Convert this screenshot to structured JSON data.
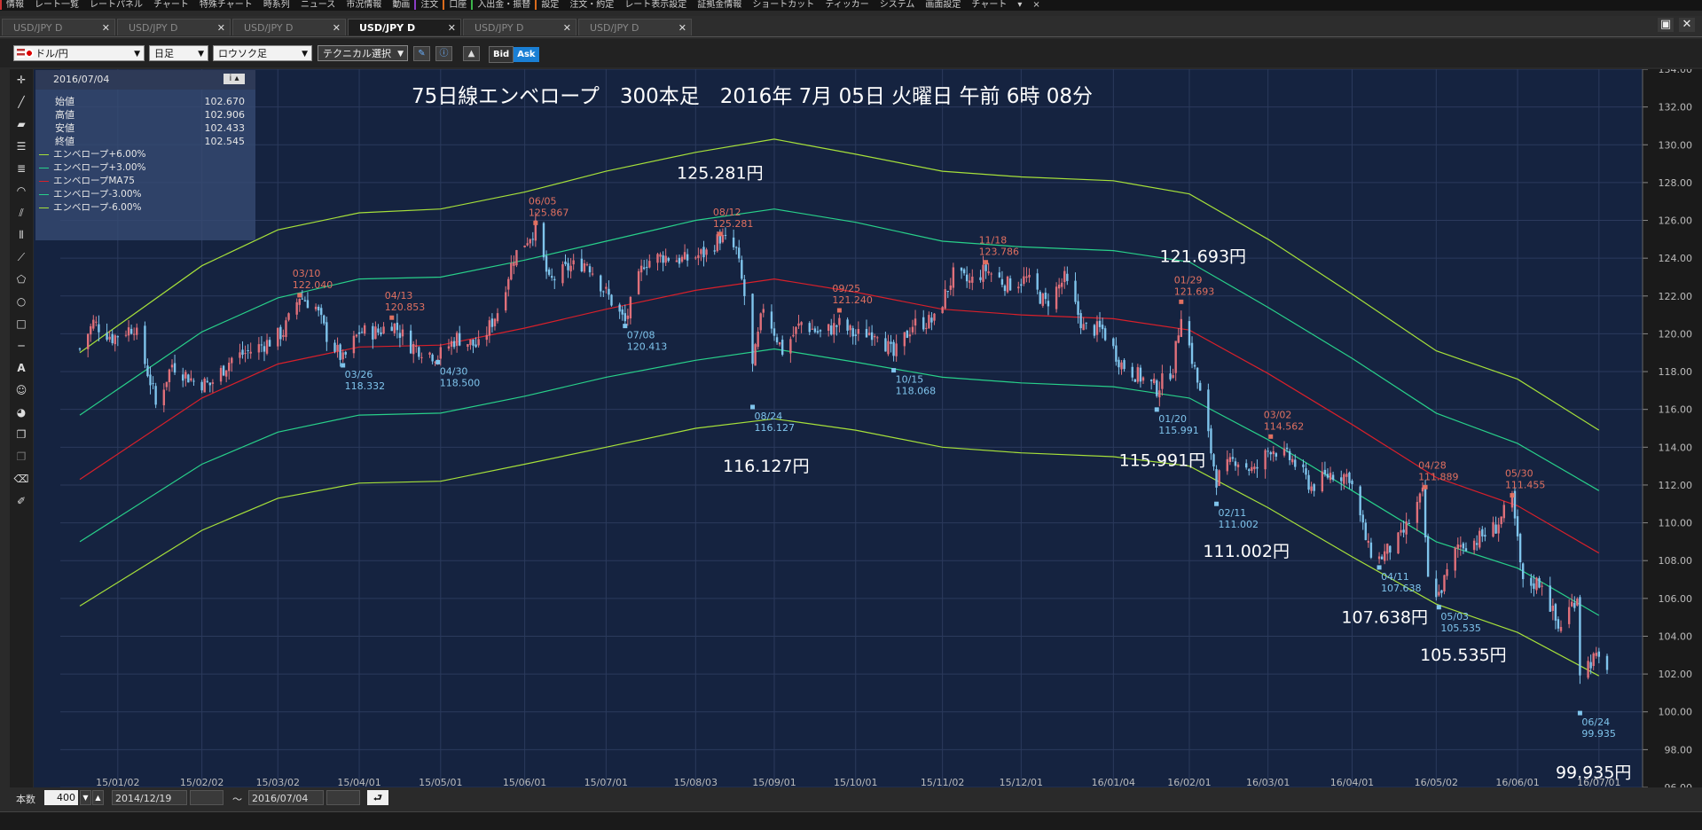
{
  "menu": [
    "情報",
    "レート一覧",
    "レートパネル",
    "チャート",
    "特殊チャート",
    "時系列",
    "ニュース",
    "市況情報",
    "動画",
    "注文",
    "口座",
    "入出金・振替",
    "設定",
    "注文・約定",
    "レート表示設定",
    "証拠金情報",
    "ショートカット",
    "ティッカー",
    "システム",
    "画面設定",
    "チャート",
    "▾",
    "×"
  ],
  "tabs": [
    "USD/JPY D",
    "USD/JPY D",
    "USD/JPY D",
    "USD/JPY D",
    "USD/JPY D",
    "USD/JPY D"
  ],
  "active_tab": 3,
  "window_buttons": [
    "▣",
    "✕"
  ],
  "toolbar": {
    "currency": "ドル/円",
    "period": "日足",
    "chart_style": "ロウソク足",
    "technical": "テクニカル選択",
    "bid": "Bid",
    "ask": "Ask"
  },
  "info": {
    "date": "2016/07/04",
    "rows": [
      {
        "label": "始値",
        "value": "102.670"
      },
      {
        "label": "高値",
        "value": "102.906"
      },
      {
        "label": "安値",
        "value": "102.433"
      },
      {
        "label": "終値",
        "value": "102.545"
      }
    ],
    "legend": [
      {
        "label": "エンベロープ+6.00%",
        "color": "#a6e03a"
      },
      {
        "label": "エンベロープ+3.00%",
        "color": "#28d08a"
      },
      {
        "label": "エンベロープMA75",
        "color": "#d8202a"
      },
      {
        "label": "エンベロープ-3.00%",
        "color": "#28d08a"
      },
      {
        "label": "エンベロープ-6.00%",
        "color": "#a6e03a"
      }
    ]
  },
  "bottom": {
    "count_label": "本数",
    "count": "400",
    "from": "2014/12/19",
    "tilde": "～",
    "to": "2016/07/04"
  },
  "chart_data": {
    "type": "candlestick",
    "title": "75日線エンベロープ　300本足　2016年 7月 05日 火曜日 午前 6時 08分",
    "ylim": [
      96,
      134
    ],
    "yticks": [
      "96.00",
      "98.00",
      "100.00",
      "102.00",
      "104.00",
      "106.00",
      "108.00",
      "110.00",
      "112.00",
      "114.00",
      "116.00",
      "118.00",
      "120.00",
      "122.00",
      "124.00",
      "126.00",
      "128.00",
      "130.00",
      "132.00",
      "134.00"
    ],
    "xticks": [
      "15/01/02",
      "15/02/02",
      "15/03/02",
      "15/04/01",
      "15/05/01",
      "15/06/01",
      "15/07/01",
      "15/08/03",
      "15/09/01",
      "15/10/01",
      "15/11/02",
      "15/12/01",
      "16/01/04",
      "16/02/01",
      "16/03/01",
      "16/04/01",
      "16/05/02",
      "16/06/01",
      "16/07/01"
    ],
    "close_path": [
      [
        "2014-12-19",
        119.2
      ],
      [
        "2014-12-24",
        120.6
      ],
      [
        "2014-12-31",
        119.8
      ],
      [
        "2015-01-08",
        120.4
      ],
      [
        "2015-01-15",
        117.0
      ],
      [
        "2015-01-16",
        116.2
      ],
      [
        "2015-01-22",
        118.4
      ],
      [
        "2015-01-30",
        117.5
      ],
      [
        "2015-02-05",
        117.3
      ],
      [
        "2015-02-13",
        118.7
      ],
      [
        "2015-02-20",
        119.1
      ],
      [
        "2015-02-27",
        119.6
      ],
      [
        "2015-03-04",
        120.1
      ],
      [
        "2015-03-10",
        122.0
      ],
      [
        "2015-03-16",
        121.4
      ],
      [
        "2015-03-20",
        119.9
      ],
      [
        "2015-03-26",
        118.6
      ],
      [
        "2015-04-01",
        120.1
      ],
      [
        "2015-04-08",
        120.1
      ],
      [
        "2015-04-13",
        120.6
      ],
      [
        "2015-04-20",
        119.4
      ],
      [
        "2015-04-30",
        118.8
      ],
      [
        "2015-05-07",
        119.8
      ],
      [
        "2015-05-15",
        119.3
      ],
      [
        "2015-05-22",
        121.2
      ],
      [
        "2015-05-28",
        124.1
      ],
      [
        "2015-06-05",
        125.6
      ],
      [
        "2015-06-10",
        122.7
      ],
      [
        "2015-06-17",
        123.5
      ],
      [
        "2015-06-24",
        123.8
      ],
      [
        "2015-06-30",
        122.4
      ],
      [
        "2015-07-08",
        120.6
      ],
      [
        "2015-07-15",
        123.8
      ],
      [
        "2015-07-22",
        124.1
      ],
      [
        "2015-07-30",
        123.9
      ],
      [
        "2015-08-07",
        124.3
      ],
      [
        "2015-08-12",
        125.1
      ],
      [
        "2015-08-18",
        124.4
      ],
      [
        "2015-08-21",
        122.0
      ],
      [
        "2015-08-24",
        118.2
      ],
      [
        "2015-08-28",
        121.5
      ],
      [
        "2015-09-04",
        119.1
      ],
      [
        "2015-09-11",
        120.6
      ],
      [
        "2015-09-18",
        120.0
      ],
      [
        "2015-09-25",
        120.5
      ],
      [
        "2015-10-01",
        119.9
      ],
      [
        "2015-10-09",
        120.2
      ],
      [
        "2015-10-15",
        118.8
      ],
      [
        "2015-10-22",
        120.5
      ],
      [
        "2015-10-30",
        120.7
      ],
      [
        "2015-11-06",
        123.1
      ],
      [
        "2015-11-12",
        122.7
      ],
      [
        "2015-11-18",
        123.4
      ],
      [
        "2015-11-26",
        122.6
      ],
      [
        "2015-12-03",
        122.9
      ],
      [
        "2015-12-10",
        121.6
      ],
      [
        "2015-12-17",
        122.9
      ],
      [
        "2015-12-24",
        120.3
      ],
      [
        "2015-12-31",
        120.2
      ],
      [
        "2016-01-07",
        118.4
      ],
      [
        "2016-01-14",
        117.7
      ],
      [
        "2016-01-20",
        117.1
      ],
      [
        "2016-01-26",
        118.2
      ],
      [
        "2016-01-29",
        121.2
      ],
      [
        "2016-02-05",
        116.8
      ],
      [
        "2016-02-11",
        112.3
      ],
      [
        "2016-02-18",
        113.4
      ],
      [
        "2016-02-25",
        112.7
      ],
      [
        "2016-03-02",
        114.0
      ],
      [
        "2016-03-10",
        113.3
      ],
      [
        "2016-03-17",
        111.9
      ],
      [
        "2016-03-24",
        112.6
      ],
      [
        "2016-03-31",
        112.5
      ],
      [
        "2016-04-07",
        108.6
      ],
      [
        "2016-04-11",
        108.1
      ],
      [
        "2016-04-19",
        109.2
      ],
      [
        "2016-04-27",
        111.5
      ],
      [
        "2016-04-29",
        106.9
      ],
      [
        "2016-05-03",
        106.2
      ],
      [
        "2016-05-10",
        108.8
      ],
      [
        "2016-05-17",
        109.1
      ],
      [
        "2016-05-24",
        109.8
      ],
      [
        "2016-05-30",
        111.2
      ],
      [
        "2016-06-03",
        106.7
      ],
      [
        "2016-06-10",
        106.9
      ],
      [
        "2016-06-16",
        104.4
      ],
      [
        "2016-06-23",
        106.2
      ],
      [
        "2016-06-24",
        102.2
      ],
      [
        "2016-06-29",
        102.8
      ],
      [
        "2016-07-04",
        102.5
      ]
    ],
    "envelope": {
      "ma75": [
        [
          "2014-12-19",
          112.3
        ],
        [
          "2015-02-02",
          116.6
        ],
        [
          "2015-03-02",
          118.4
        ],
        [
          "2015-04-01",
          119.3
        ],
        [
          "2015-05-01",
          119.4
        ],
        [
          "2015-06-01",
          120.3
        ],
        [
          "2015-07-01",
          121.3
        ],
        [
          "2015-08-03",
          122.3
        ],
        [
          "2015-09-01",
          122.9
        ],
        [
          "2015-10-01",
          122.2
        ],
        [
          "2015-11-02",
          121.3
        ],
        [
          "2015-12-01",
          121.0
        ],
        [
          "2016-01-04",
          120.8
        ],
        [
          "2016-02-01",
          120.2
        ],
        [
          "2016-03-01",
          117.9
        ],
        [
          "2016-04-01",
          115.2
        ],
        [
          "2016-05-02",
          112.4
        ],
        [
          "2016-06-01",
          110.9
        ],
        [
          "2016-07-01",
          108.4
        ]
      ],
      "upper6": [
        [
          "2014-12-19",
          119.0
        ],
        [
          "2015-02-02",
          123.6
        ],
        [
          "2015-03-02",
          125.5
        ],
        [
          "2015-04-01",
          126.4
        ],
        [
          "2015-05-01",
          126.6
        ],
        [
          "2015-06-01",
          127.5
        ],
        [
          "2015-07-01",
          128.6
        ],
        [
          "2015-08-03",
          129.6
        ],
        [
          "2015-09-01",
          130.3
        ],
        [
          "2015-10-01",
          129.5
        ],
        [
          "2015-11-02",
          128.6
        ],
        [
          "2015-12-01",
          128.3
        ],
        [
          "2016-01-04",
          128.1
        ],
        [
          "2016-02-01",
          127.4
        ],
        [
          "2016-03-01",
          125.0
        ],
        [
          "2016-04-01",
          122.1
        ],
        [
          "2016-05-02",
          119.1
        ],
        [
          "2016-06-01",
          117.6
        ],
        [
          "2016-07-01",
          114.9
        ]
      ],
      "upper3": [
        [
          "2014-12-19",
          115.7
        ],
        [
          "2015-02-02",
          120.1
        ],
        [
          "2015-03-02",
          121.9
        ],
        [
          "2015-04-01",
          122.9
        ],
        [
          "2015-05-01",
          123.0
        ],
        [
          "2015-06-01",
          123.9
        ],
        [
          "2015-07-01",
          124.9
        ],
        [
          "2015-08-03",
          126.0
        ],
        [
          "2015-09-01",
          126.6
        ],
        [
          "2015-10-01",
          125.9
        ],
        [
          "2015-11-02",
          124.9
        ],
        [
          "2015-12-01",
          124.6
        ],
        [
          "2016-01-04",
          124.4
        ],
        [
          "2016-02-01",
          123.8
        ],
        [
          "2016-03-01",
          121.4
        ],
        [
          "2016-04-01",
          118.7
        ],
        [
          "2016-05-02",
          115.8
        ],
        [
          "2016-06-01",
          114.2
        ],
        [
          "2016-07-01",
          111.7
        ]
      ],
      "lower3": [
        [
          "2014-12-19",
          109.0
        ],
        [
          "2015-02-02",
          113.1
        ],
        [
          "2015-03-02",
          114.8
        ],
        [
          "2015-04-01",
          115.7
        ],
        [
          "2015-05-01",
          115.8
        ],
        [
          "2015-06-01",
          116.7
        ],
        [
          "2015-07-01",
          117.7
        ],
        [
          "2015-08-03",
          118.6
        ],
        [
          "2015-09-01",
          119.2
        ],
        [
          "2015-10-01",
          118.5
        ],
        [
          "2015-11-02",
          117.7
        ],
        [
          "2015-12-01",
          117.4
        ],
        [
          "2016-01-04",
          117.2
        ],
        [
          "2016-02-01",
          116.6
        ],
        [
          "2016-03-01",
          114.4
        ],
        [
          "2016-04-01",
          111.7
        ],
        [
          "2016-05-02",
          109.0
        ],
        [
          "2016-06-01",
          107.6
        ],
        [
          "2016-07-01",
          105.1
        ]
      ],
      "lower6": [
        [
          "2014-12-19",
          105.6
        ],
        [
          "2015-02-02",
          109.6
        ],
        [
          "2015-03-02",
          111.3
        ],
        [
          "2015-04-01",
          112.1
        ],
        [
          "2015-05-01",
          112.2
        ],
        [
          "2015-06-01",
          113.1
        ],
        [
          "2015-07-01",
          114.0
        ],
        [
          "2015-08-03",
          115.0
        ],
        [
          "2015-09-01",
          115.5
        ],
        [
          "2015-10-01",
          114.9
        ],
        [
          "2015-11-02",
          114.0
        ],
        [
          "2015-12-01",
          113.7
        ],
        [
          "2016-01-04",
          113.5
        ],
        [
          "2016-02-01",
          113.0
        ],
        [
          "2016-03-01",
          110.8
        ],
        [
          "2016-04-01",
          108.2
        ],
        [
          "2016-05-02",
          105.7
        ],
        [
          "2016-06-01",
          104.2
        ],
        [
          "2016-07-01",
          101.9
        ]
      ]
    },
    "peak_labels": [
      {
        "date": "03/10",
        "value": "122.040",
        "x": "2015-03-10",
        "y": 122.04,
        "type": "high"
      },
      {
        "date": "04/13",
        "value": "120.853",
        "x": "2015-04-13",
        "y": 120.853,
        "type": "high"
      },
      {
        "date": "06/05",
        "value": "125.867",
        "x": "2015-06-05",
        "y": 125.867,
        "type": "high"
      },
      {
        "date": "08/12",
        "value": "125.281",
        "x": "2015-08-12",
        "y": 125.281,
        "type": "high"
      },
      {
        "date": "09/25",
        "value": "121.240",
        "x": "2015-09-25",
        "y": 121.24,
        "type": "high"
      },
      {
        "date": "11/18",
        "value": "123.786",
        "x": "2015-11-18",
        "y": 123.786,
        "type": "high"
      },
      {
        "date": "01/29",
        "value": "121.693",
        "x": "2016-01-29",
        "y": 121.693,
        "type": "high"
      },
      {
        "date": "03/02",
        "value": "114.562",
        "x": "2016-03-02",
        "y": 114.562,
        "type": "high"
      },
      {
        "date": "04/28",
        "value": "111.889",
        "x": "2016-04-28",
        "y": 111.889,
        "type": "high"
      },
      {
        "date": "05/30",
        "value": "111.455",
        "x": "2016-05-30",
        "y": 111.455,
        "type": "high"
      },
      {
        "date": "03/26",
        "value": "118.332",
        "x": "2015-03-26",
        "y": 118.332,
        "type": "low"
      },
      {
        "date": "04/30",
        "value": "118.500",
        "x": "2015-04-30",
        "y": 118.5,
        "type": "low"
      },
      {
        "date": "07/08",
        "value": "120.413",
        "x": "2015-07-08",
        "y": 120.413,
        "type": "low"
      },
      {
        "date": "08/24",
        "value": "116.127",
        "x": "2015-08-24",
        "y": 116.127,
        "type": "low"
      },
      {
        "date": "10/15",
        "value": "118.068",
        "x": "2015-10-15",
        "y": 118.068,
        "type": "low"
      },
      {
        "date": "01/20",
        "value": "115.991",
        "x": "2016-01-20",
        "y": 115.991,
        "type": "low"
      },
      {
        "date": "02/11",
        "value": "111.002",
        "x": "2016-02-11",
        "y": 111.002,
        "type": "low"
      },
      {
        "date": "04/11",
        "value": "107.638",
        "x": "2016-04-11",
        "y": 107.638,
        "type": "low"
      },
      {
        "date": "05/03",
        "value": "105.535",
        "x": "2016-05-03",
        "y": 105.535,
        "type": "low"
      },
      {
        "date": "06/24",
        "value": "99.935",
        "x": "2016-06-24",
        "y": 99.935,
        "type": "low"
      }
    ],
    "annotations": [
      {
        "text": "125.281円",
        "x": "2015-08-12",
        "y": 128.2
      },
      {
        "text": "121.693円",
        "x": "2016-02-06",
        "y": 123.8
      },
      {
        "text": "116.127円",
        "x": "2015-08-29",
        "y": 112.7
      },
      {
        "text": "115.991円",
        "x": "2016-01-22",
        "y": 113.0
      },
      {
        "text": "111.002円",
        "x": "2016-02-22",
        "y": 108.2
      },
      {
        "text": "107.638円",
        "x": "2016-04-13",
        "y": 104.7
      },
      {
        "text": "105.535円",
        "x": "2016-05-12",
        "y": 102.7
      },
      {
        "text": "99.935円",
        "x": "2016-06-29",
        "y": 96.5
      }
    ],
    "colors": {
      "background": "#152340",
      "grid": "#2b3a5c",
      "up": "#e0707a",
      "down": "#7fc4ec",
      "high_label": "#e07060",
      "low_label": "#7fc4ec",
      "axis_text": "#bbbbbb",
      "title": "#ffffff",
      "annotation": "#ffffff"
    }
  }
}
